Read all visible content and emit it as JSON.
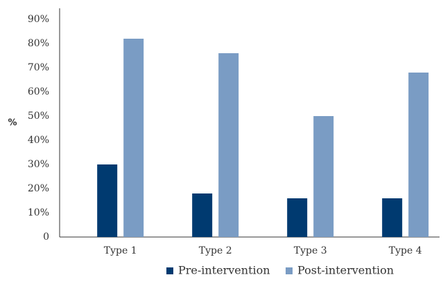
{
  "chart_data": {
    "type": "bar",
    "categories": [
      "Type 1",
      "Type 2",
      "Type 3",
      "Type 4"
    ],
    "series": [
      {
        "name": "Pre-intervention",
        "values": [
          30,
          18,
          16,
          16
        ],
        "color": "#003a70"
      },
      {
        "name": "Post-intervention",
        "values": [
          82,
          76,
          50,
          68
        ],
        "color": "#7a9cc4"
      }
    ],
    "ylim": [
      0,
      90
    ],
    "yticks": [
      0,
      10,
      20,
      30,
      40,
      50,
      60,
      70,
      80,
      90
    ],
    "ytick_labels": [
      "0",
      "10%",
      "20%",
      "30%",
      "40%",
      "50%",
      "60%",
      "70%",
      "80%",
      "90%"
    ],
    "ylabel": "%",
    "xlabel": "",
    "title": "",
    "grid": false,
    "legend_position": "bottom"
  }
}
